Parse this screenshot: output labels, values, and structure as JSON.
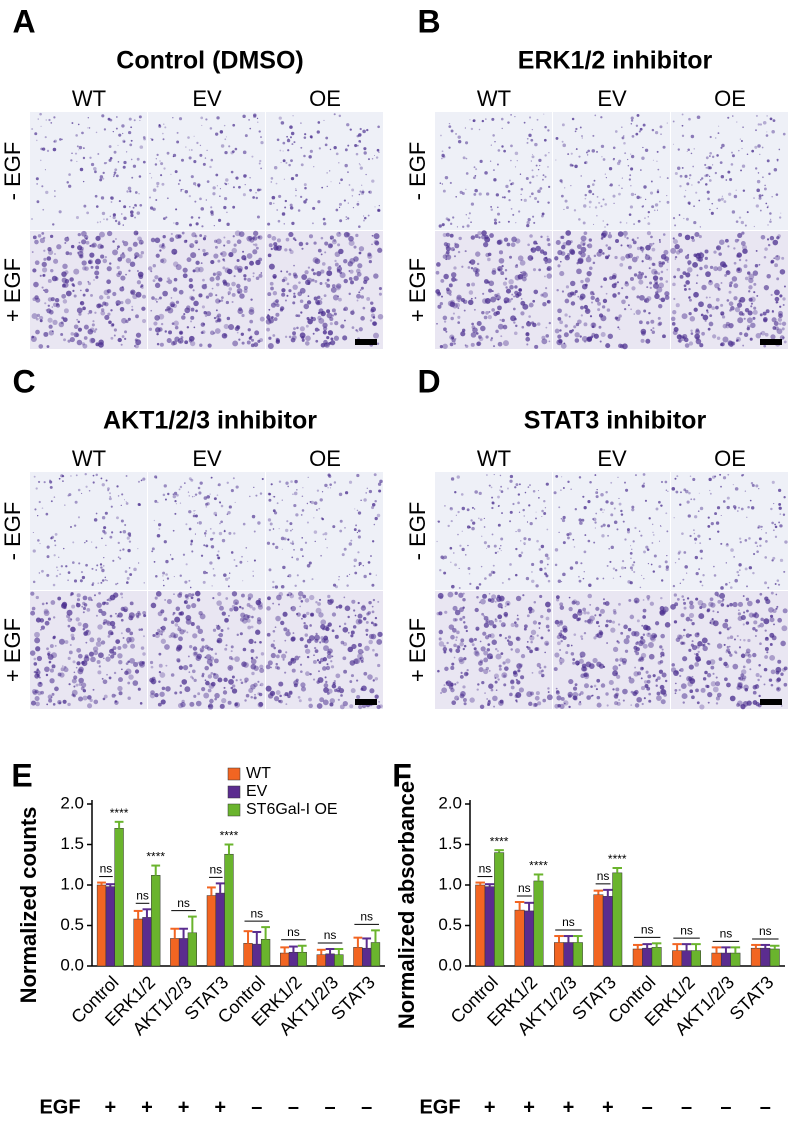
{
  "panels": [
    {
      "letter": "A",
      "title": "Control (DMSO)",
      "columns": [
        "WT",
        "EV",
        "OE"
      ],
      "rows": [
        "- EGF",
        "+ EGF"
      ]
    },
    {
      "letter": "B",
      "title": "ERK1/2 inhibitor",
      "columns": [
        "WT",
        "EV",
        "OE"
      ],
      "rows": [
        "- EGF",
        "+ EGF"
      ]
    },
    {
      "letter": "C",
      "title": "AKT1/2/3 inhibitor",
      "columns": [
        "WT",
        "EV",
        "OE"
      ],
      "rows": [
        "- EGF",
        "+ EGF"
      ]
    },
    {
      "letter": "D",
      "title": "STAT3 inhibitor",
      "columns": [
        "WT",
        "EV",
        "OE"
      ],
      "rows": [
        "- EGF",
        "+ EGF"
      ]
    }
  ],
  "chart_data": [
    {
      "type": "bar",
      "letter": "E",
      "ylabel": "Normalized counts",
      "categories": [
        "Control",
        "ERK1/2",
        "AKT1/2/3",
        "STAT3",
        "Control",
        "ERK1/2",
        "AKT1/2/3",
        "STAT3"
      ],
      "series": [
        {
          "name": "WT",
          "color": "#f26522",
          "values": [
            1.0,
            0.58,
            0.34,
            0.87,
            0.28,
            0.16,
            0.14,
            0.23
          ],
          "errors": [
            0.03,
            0.1,
            0.12,
            0.1,
            0.15,
            0.07,
            0.06,
            0.12
          ]
        },
        {
          "name": "EV",
          "color": "#5b2c8f",
          "values": [
            0.98,
            0.6,
            0.34,
            0.9,
            0.27,
            0.17,
            0.15,
            0.22
          ],
          "errors": [
            0.03,
            0.1,
            0.12,
            0.12,
            0.15,
            0.07,
            0.06,
            0.12
          ]
        },
        {
          "name": "ST6Gal-I OE",
          "color": "#6ab42d",
          "values": [
            1.7,
            1.12,
            0.41,
            1.38,
            0.33,
            0.17,
            0.14,
            0.29
          ],
          "errors": [
            0.08,
            0.12,
            0.2,
            0.12,
            0.15,
            0.08,
            0.07,
            0.15
          ]
        }
      ],
      "ylim": [
        0,
        2.0
      ],
      "yticks": [
        {
          "value": 0,
          "label": "0.0"
        },
        {
          "value": 0.5,
          "label": "0.5"
        },
        {
          "value": 1.0,
          "label": "1.0"
        },
        {
          "value": 1.5,
          "label": "1.5"
        },
        {
          "value": 2.0,
          "label": "2.0"
        }
      ],
      "annotations": [
        [
          "ns",
          "****"
        ],
        [
          "ns",
          "****"
        ],
        [
          "ns"
        ],
        [
          "ns",
          "****"
        ],
        [
          "ns"
        ],
        [
          "ns"
        ],
        [
          "ns"
        ],
        [
          "ns"
        ]
      ],
      "egf_label": "EGF",
      "egf": [
        "+",
        "+",
        "+",
        "+",
        "–",
        "–",
        "–",
        "–"
      ],
      "legend": true
    },
    {
      "type": "bar",
      "letter": "F",
      "ylabel": "Normalized absorbance",
      "categories": [
        "Control",
        "ERK1/2",
        "AKT1/2/3",
        "STAT3",
        "Control",
        "ERK1/2",
        "AKT1/2/3",
        "STAT3"
      ],
      "series": [
        {
          "color": "#f26522",
          "values": [
            1.0,
            0.69,
            0.29,
            0.88,
            0.21,
            0.19,
            0.16,
            0.22
          ],
          "errors": [
            0.03,
            0.1,
            0.08,
            0.05,
            0.05,
            0.08,
            0.07,
            0.04
          ]
        },
        {
          "color": "#5b2c8f",
          "values": [
            0.98,
            0.68,
            0.29,
            0.86,
            0.22,
            0.19,
            0.16,
            0.22
          ],
          "errors": [
            0.03,
            0.1,
            0.08,
            0.08,
            0.05,
            0.08,
            0.07,
            0.04
          ]
        },
        {
          "color": "#6ab42d",
          "values": [
            1.4,
            1.05,
            0.29,
            1.15,
            0.23,
            0.19,
            0.16,
            0.21
          ],
          "errors": [
            0.03,
            0.08,
            0.08,
            0.06,
            0.05,
            0.08,
            0.07,
            0.04
          ]
        }
      ],
      "ylim": [
        0,
        2.0
      ],
      "yticks": [
        {
          "value": 0,
          "label": "0.0"
        },
        {
          "value": 0.5,
          "label": "0.5"
        },
        {
          "value": 1.0,
          "label": "1.0"
        },
        {
          "value": 1.5,
          "label": "1.5"
        },
        {
          "value": 2.0,
          "label": "2.0"
        }
      ],
      "annotations": [
        [
          "ns",
          "****"
        ],
        [
          "ns",
          "****"
        ],
        [
          "ns"
        ],
        [
          "ns",
          "****"
        ],
        [
          "ns"
        ],
        [
          "ns"
        ],
        [
          "ns"
        ],
        [
          "ns"
        ]
      ],
      "egf_label": "EGF",
      "egf": [
        "+",
        "+",
        "+",
        "+",
        "–",
        "–",
        "–",
        "–"
      ],
      "legend": false
    }
  ]
}
